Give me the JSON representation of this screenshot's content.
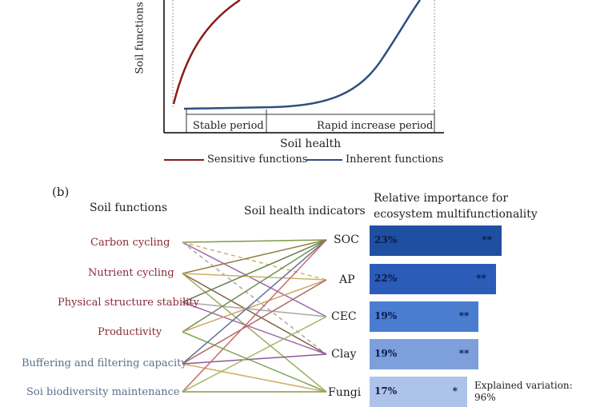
{
  "panel_a": {
    "y_axis_label": "Soil functions",
    "x_axis_label": "Soil health",
    "stable_label": "Stable period",
    "rapid_label": "Rapid increase period",
    "legend": [
      {
        "label": "Sensitive functions",
        "color": "#8b1a1a"
      },
      {
        "label": "Inherent functions",
        "color": "#2f4f7f"
      }
    ]
  },
  "panel_b": {
    "tag": "(b)",
    "functions_header": "Soil functions",
    "indicators_header": "Soil health indicators",
    "importance_header_line1": "Relative importance for",
    "importance_header_line2": "ecosystem multifunctionality",
    "functions": [
      {
        "label": "Carbon cycling",
        "color": "#8b2a3a"
      },
      {
        "label": "Nutrient cycling",
        "color": "#8b2a3a"
      },
      {
        "label": "Physical structure stability",
        "color": "#8b2a3a"
      },
      {
        "label": "Productivity",
        "color": "#8b2a3a"
      },
      {
        "label": "Buffering and filtering capacity",
        "color": "#5a6f8a"
      },
      {
        "label": "Soi biodiversity maintenance",
        "color": "#5a6f8a"
      }
    ],
    "indicators": [
      {
        "label": "SOC",
        "percent": "23%",
        "sig": "**",
        "value": 23,
        "color": "#1f4fa0"
      },
      {
        "label": "AP",
        "percent": "22%",
        "sig": "**",
        "value": 22,
        "color": "#2a5cb8"
      },
      {
        "label": "CEC",
        "percent": "19%",
        "sig": "**",
        "value": 19,
        "color": "#4a7cd0"
      },
      {
        "label": "Clay",
        "percent": "19%",
        "sig": "**",
        "value": 19,
        "color": "#7d9fdc"
      },
      {
        "label": "Fungi",
        "percent": "17%",
        "sig": "*",
        "value": 17,
        "color": "#aec3ea"
      }
    ],
    "explained_line1": "Explained variation:",
    "explained_line2": "96%"
  }
}
